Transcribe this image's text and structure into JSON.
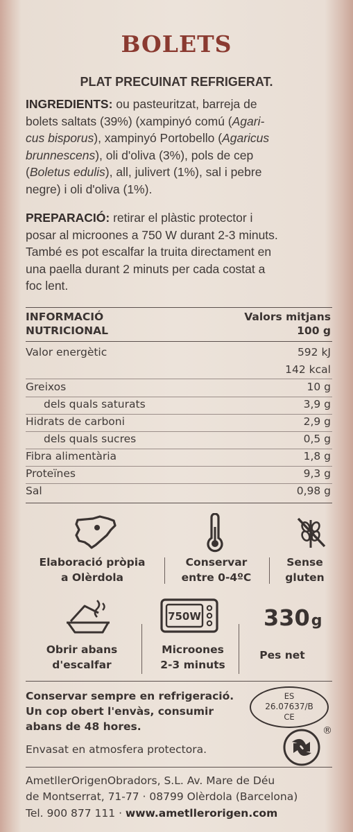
{
  "title": "BOLETS",
  "subtitle": "PLAT PRECUINAT REFRIGERAT.",
  "ingredients": {
    "label": "INGREDIENTS:",
    "line1_rest": " ou pasteuritzat, barreja de",
    "line2_a": "bolets saltats (39%) (xampinyó comú (",
    "line2_i": "Agari-",
    "line3_i": "cus bisporus",
    "line3_b": "), xampinyó Portobello (",
    "line3_i2": "Agaricus",
    "line4_i": "brunnescens",
    "line4_b": "), oli d'oliva (3%), pols de cep",
    "line5_a": "(",
    "line5_i": "Boletus edulis",
    "line5_b": "), all, julivert (1%), sal i pebre",
    "line6": "negre) i oli d'oliva (1%)."
  },
  "preparation": {
    "label": "PREPARACIÓ:",
    "line1_rest": " retirar el plàstic protector i",
    "line2": "posar al microones a 750 W durant 2-3 minuts.",
    "line3": "També es pot escalfar la truita directament en",
    "line4": "una paella durant 2 minuts per cada costat a",
    "line5": "foc lent."
  },
  "nutrition": {
    "header_left_1": "INFORMACIÓ",
    "header_left_2": "NUTRICIONAL",
    "header_right_1": "Valors mitjans",
    "header_right_2": "100 g",
    "rows": [
      {
        "name": "Valor energètic",
        "value": "592 kJ"
      },
      {
        "name": "",
        "value": "142 kcal"
      },
      {
        "name": "Greixos",
        "value": "10 g"
      },
      {
        "name": "dels quals saturats",
        "value": "3,9 g"
      },
      {
        "name": "Hidrats de carboni",
        "value": "2,9 g"
      },
      {
        "name": "dels quals sucres",
        "value": "0,5 g"
      },
      {
        "name": "Fibra alimentària",
        "value": "1,8 g"
      },
      {
        "name": "Proteïnes",
        "value": "9,3 g"
      },
      {
        "name": "Sal",
        "value": "0,98 g"
      }
    ]
  },
  "badges": {
    "origin_1": "Elaboració pròpia",
    "origin_2": "a Olèrdola",
    "storage_1": "Conservar",
    "storage_2": "entre 0-4ºC",
    "gluten_1": "Sense",
    "gluten_2": "gluten",
    "open_1": "Obrir abans",
    "open_2": "d'escalfar",
    "micro_1": "Microones",
    "micro_2": "2-3 minuts",
    "micro_display": "750W",
    "weight_number": "330",
    "weight_unit": "g",
    "weight_label": "Pes net"
  },
  "storage_note": {
    "line1": "Conservar sempre en refrigeració.",
    "line2": "Un cop obert l'envàs, consumir",
    "line3": "abans de 48 hores."
  },
  "health_mark": {
    "line1": "ES",
    "line2": "26.07637/B",
    "line3": "CE"
  },
  "packaging_note": "Envasat en atmosfera protectora.",
  "registered_mark": "®",
  "company": {
    "line1": "AmetllerOrigenObradors, S.L. Av. Mare de Déu",
    "line2": "de Montserrat, 71-77 · 08799 Olèrdola (Barcelona)",
    "phone": "Tel. 900 877 111 · ",
    "web": "www.ametllerorigen.com"
  },
  "colors": {
    "title": "#8a3a30",
    "text": "#3f3937",
    "background": "#ece3da"
  }
}
